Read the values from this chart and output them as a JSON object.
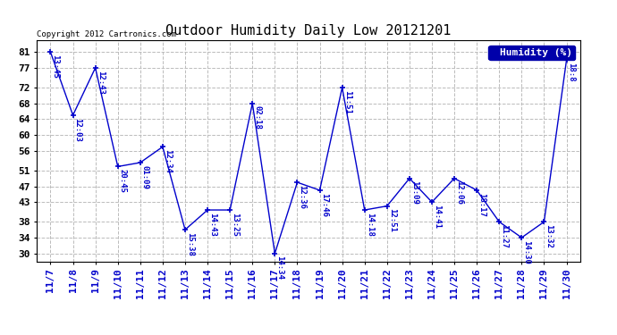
{
  "title": "Outdoor Humidity Daily Low 20121201",
  "copyright": "Copyright 2012 Cartronics.com",
  "legend_label": "Humidity (%)",
  "x_labels": [
    "11/7",
    "11/8",
    "11/9",
    "11/10",
    "11/11",
    "11/12",
    "11/13",
    "11/14",
    "11/15",
    "11/16",
    "11/17",
    "11/18",
    "11/19",
    "11/20",
    "11/21",
    "11/22",
    "11/23",
    "11/24",
    "11/25",
    "11/26",
    "11/27",
    "11/28",
    "11/29",
    "11/30"
  ],
  "y_values": [
    81,
    65,
    77,
    52,
    53,
    57,
    36,
    41,
    41,
    68,
    30,
    48,
    46,
    72,
    41,
    42,
    49,
    43,
    49,
    46,
    38,
    34,
    38,
    79
  ],
  "point_labels": [
    "13:45",
    "12:03",
    "12:43",
    "20:45",
    "01:09",
    "12:34",
    "15:38",
    "14:43",
    "13:25",
    "02:18",
    "14:34",
    "12:36",
    "17:46",
    "11:51",
    "14:18",
    "12:51",
    "13:09",
    "14:41",
    "12:06",
    "18:17",
    "11:27",
    "14:30",
    "13:32",
    "18:8"
  ],
  "ylim_min": 28,
  "ylim_max": 84,
  "yticks": [
    30,
    34,
    38,
    43,
    47,
    51,
    56,
    60,
    64,
    68,
    72,
    77,
    81
  ],
  "line_color": "#0000CC",
  "bg_color": "#FFFFFF",
  "plot_bg_color": "#FFFFFF",
  "grid_color": "#BBBBBB",
  "title_fontsize": 11,
  "label_fontsize": 6.5,
  "tick_fontsize": 8,
  "copyright_fontsize": 6.5,
  "legend_bg": "#0000AA",
  "legend_fg": "#FFFFFF"
}
